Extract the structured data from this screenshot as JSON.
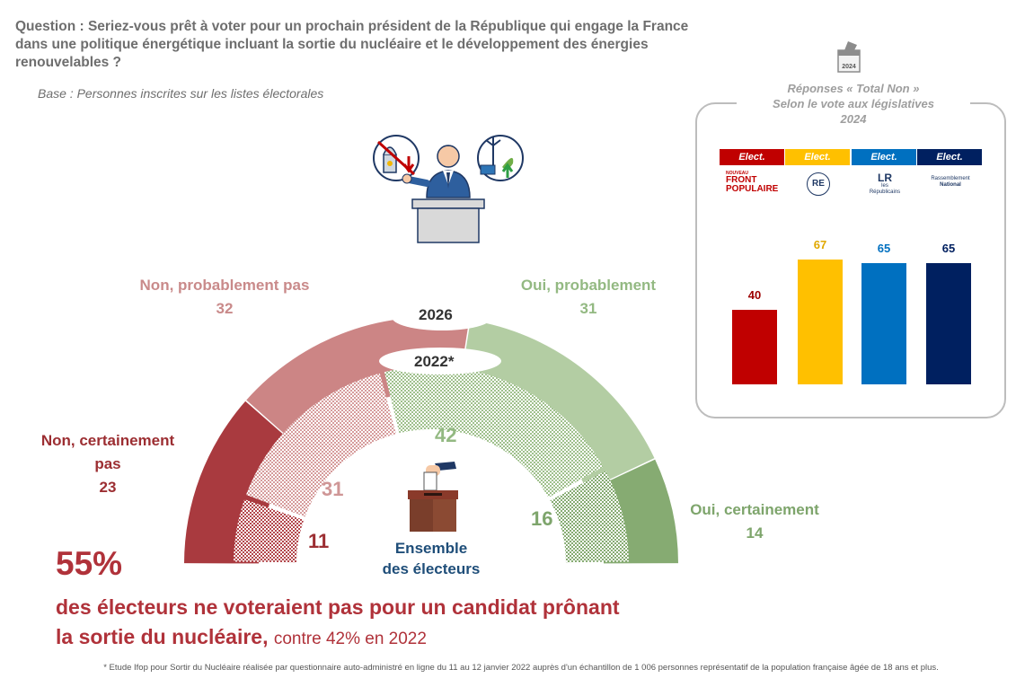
{
  "question": "Question : Seriez-vous prêt à voter pour un prochain président de la République qui engage la France dans une politique énergétique incluant la sortie du nucléaire et le développement des énergies renouvelables ?",
  "base": "Base : Personnes inscrites sur les listes électorales",
  "outer_year": "2026",
  "inner_year": "2022*",
  "center_label_line1": "Ensemble",
  "center_label_line2": "des électeurs",
  "headline_pct": "55%",
  "headline_line1": "des électeurs ne voteraient pas pour un candidat prônant",
  "headline_line2": "la sortie du nucléaire,",
  "headline_contre": "contre 42% en 2022",
  "footnote": "* Etude Ifop pour Sortir du Nucléaire réalisée par questionnaire auto-administré en ligne du 11 au 12 janvier 2022 auprès d'un échantillon de 1 006 personnes représentatif de la population française âgée de 18 ans et plus.",
  "colors": {
    "non_certainement": "#a93a3f",
    "non_probablement": "#cc8585",
    "oui_probablement": "#b3cda3",
    "oui_certainement": "#86ab72",
    "nfp": "#c00000",
    "re": "#ffc000",
    "lr": "#0070c0",
    "rn": "#002060"
  },
  "chart_data": [
    {
      "type": "pie",
      "shape": "half-donut",
      "series": [
        {
          "name": "2026",
          "categories": [
            "Non, certainement pas",
            "Non, probablement pas",
            "Oui, probablement",
            "Oui, certainement"
          ],
          "values": [
            23,
            32,
            31,
            14
          ]
        },
        {
          "name": "2022*",
          "categories": [
            "Non, certainement pas",
            "Non, probablement pas",
            "Oui, probablement",
            "Oui, certainement"
          ],
          "values": [
            11,
            31,
            42,
            16
          ]
        }
      ],
      "labels": {
        "non_certainement_line1": "Non, certainement",
        "non_certainement_line2": "pas",
        "non_probablement": "Non, probablement pas",
        "oui_probablement": "Oui, probablement",
        "oui_certainement": "Oui, certainement"
      }
    },
    {
      "type": "bar",
      "title_line1": "Réponses « Total Non »",
      "title_line2": "Selon le vote aux législatives",
      "title_line3": "2024",
      "tag": "Elect.",
      "categories": [
        "Front Populaire",
        "RE",
        "Les Républicains",
        "Rassemblement National"
      ],
      "values": [
        40,
        67,
        65,
        65
      ],
      "ylim": [
        0,
        100
      ]
    }
  ],
  "logos": {
    "fp_small": "NOUVEAU",
    "fp_line1": "FRONT",
    "fp_line2": "POPULAIRE",
    "re": "RE",
    "lr_mark": "LR",
    "lr_text1": "les",
    "lr_text2": "Républicains",
    "rn_line1": "Rassemblement",
    "rn_line2": "National",
    "calendar_year": "2024"
  }
}
